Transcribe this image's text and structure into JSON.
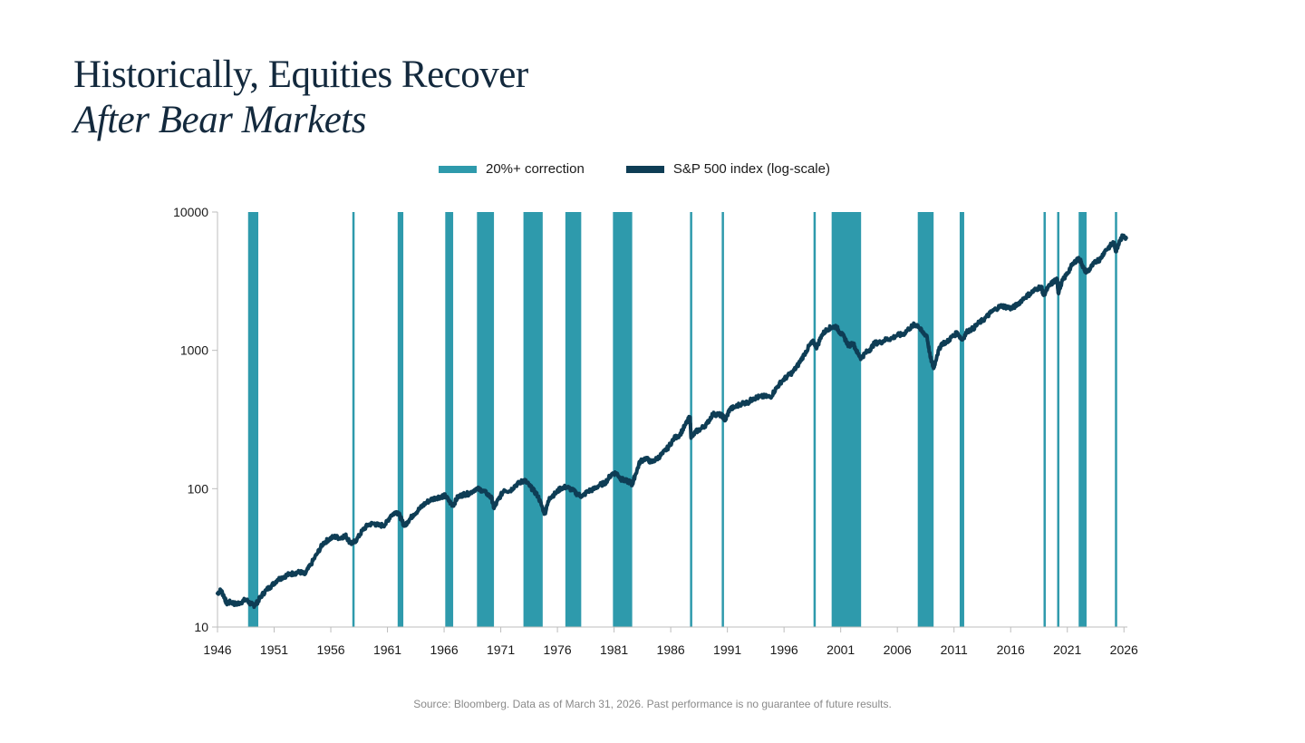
{
  "header": {
    "title_line1": "Historically, Equities Recover",
    "title_line2": "After Bear Markets"
  },
  "legend": [
    {
      "label": "20%+ correction",
      "color": "#2e9aac"
    },
    {
      "label": "S&P 500 index (log-scale)",
      "color": "#0e3d55"
    }
  ],
  "footer": {
    "source": "Source: Bloomberg. Data as of March 31, 2026. Past performance is no guarantee of future results."
  },
  "chart_data": {
    "type": "line",
    "title": "Historically, Equities Recover After Bear Markets",
    "xlabel": "",
    "ylabel": "",
    "yscale": "log",
    "xlim": [
      1946,
      2026.3
    ],
    "ylim": [
      10,
      10000
    ],
    "xticks": [
      "1946",
      "1951",
      "1956",
      "1961",
      "1966",
      "1971",
      "1976",
      "1981",
      "1986",
      "1991",
      "1996",
      "2001",
      "2006",
      "2011",
      "2016",
      "2021",
      "2026"
    ],
    "yticks": [
      "10",
      "100",
      "1000",
      "10000"
    ],
    "grid": false,
    "legend_position": "top-center",
    "series": [
      {
        "name": "S&P 500 index (log-scale)",
        "color": "#0e3d55",
        "x": [
          1946.0,
          1946.3,
          1946.6,
          1946.8,
          1947.2,
          1947.6,
          1948.0,
          1948.5,
          1948.9,
          1949.2,
          1949.5,
          1949.8,
          1950.3,
          1950.8,
          1951.3,
          1951.8,
          1952.3,
          1952.8,
          1953.3,
          1953.7,
          1954.2,
          1954.8,
          1955.3,
          1955.8,
          1956.3,
          1956.8,
          1957.3,
          1957.6,
          1957.9,
          1958.3,
          1958.8,
          1959.3,
          1959.8,
          1960.3,
          1960.8,
          1961.3,
          1961.8,
          1962.0,
          1962.3,
          1962.5,
          1962.8,
          1963.3,
          1963.8,
          1964.3,
          1964.8,
          1965.3,
          1965.8,
          1966.1,
          1966.5,
          1966.8,
          1967.2,
          1967.7,
          1968.2,
          1968.8,
          1969.3,
          1969.8,
          1970.2,
          1970.4,
          1970.8,
          1971.3,
          1971.8,
          1972.3,
          1972.8,
          1973.1,
          1973.5,
          1973.9,
          1974.3,
          1974.7,
          1974.9,
          1975.3,
          1975.8,
          1976.3,
          1976.8,
          1977.3,
          1977.8,
          1978.2,
          1978.7,
          1979.2,
          1979.7,
          1980.2,
          1980.8,
          1981.2,
          1981.6,
          1982.0,
          1982.4,
          1982.6,
          1982.9,
          1983.3,
          1983.8,
          1984.3,
          1984.8,
          1985.3,
          1985.8,
          1986.3,
          1986.8,
          1987.3,
          1987.7,
          1987.8,
          1988.2,
          1988.7,
          1989.2,
          1989.7,
          1990.2,
          1990.6,
          1990.8,
          1991.2,
          1991.7,
          1992.3,
          1992.8,
          1993.3,
          1993.8,
          1994.3,
          1994.8,
          1995.3,
          1995.8,
          1996.3,
          1996.8,
          1997.3,
          1997.8,
          1998.3,
          1998.6,
          1998.9,
          1999.3,
          1999.8,
          2000.2,
          2000.6,
          2000.9,
          2001.3,
          2001.7,
          2002.1,
          2002.5,
          2002.8,
          2003.2,
          2003.6,
          2004.0,
          2004.5,
          2005.0,
          2005.5,
          2006.0,
          2006.5,
          2007.0,
          2007.5,
          2007.8,
          2008.2,
          2008.6,
          2008.9,
          2009.2,
          2009.5,
          2009.9,
          2010.4,
          2010.8,
          2011.3,
          2011.7,
          2012.2,
          2012.7,
          2013.2,
          2013.7,
          2014.2,
          2014.7,
          2015.2,
          2015.7,
          2016.1,
          2016.6,
          2017.2,
          2017.8,
          2018.2,
          2018.7,
          2018.9,
          2019.3,
          2019.8,
          2020.1,
          2020.2,
          2020.5,
          2020.9,
          2021.4,
          2021.9,
          2022.2,
          2022.5,
          2022.8,
          2023.2,
          2023.6,
          2023.9,
          2024.3,
          2024.8,
          2025.1,
          2025.3,
          2025.6,
          2025.9,
          2026.2
        ],
        "y": [
          17.5,
          18.5,
          16.5,
          14.8,
          15.2,
          14.6,
          15.0,
          15.8,
          14.8,
          14.3,
          15.0,
          16.5,
          18.5,
          20.0,
          22.0,
          23.0,
          24.0,
          24.5,
          25.0,
          24.0,
          28.0,
          34.0,
          40.0,
          43.0,
          45.0,
          44.0,
          46.0,
          42.0,
          40.0,
          43.0,
          50.0,
          55.0,
          56.0,
          54.0,
          55.0,
          64.0,
          68.0,
          66.0,
          58.0,
          54.0,
          58.0,
          65.0,
          71.0,
          78.0,
          83.0,
          86.0,
          88.0,
          89.0,
          80.0,
          76.0,
          87.0,
          91.0,
          92.0,
          100.0,
          98.0,
          92.0,
          85.0,
          72.0,
          84.0,
          98.0,
          96.0,
          106.0,
          112.0,
          115.0,
          106.0,
          97.0,
          88.0,
          72.0,
          66.0,
          86.0,
          92.0,
          101.0,
          103.0,
          98.0,
          91.0,
          88.0,
          96.0,
          99.0,
          106.0,
          110.0,
          128.0,
          130.0,
          118.0,
          114.0,
          112.0,
          107.0,
          128.0,
          158.0,
          166.0,
          155.0,
          165.0,
          180.0,
          200.0,
          232.0,
          245.0,
          290.0,
          330.0,
          232.0,
          258.0,
          272.0,
          295.0,
          345.0,
          345.0,
          335.0,
          310.0,
          375.0,
          390.0,
          415.0,
          420.0,
          450.0,
          460.0,
          465.0,
          460.0,
          530.0,
          600.0,
          650.0,
          700.0,
          800.0,
          940.0,
          1100.0,
          1150.0,
          1050.0,
          1280.0,
          1420.0,
          1470.0,
          1490.0,
          1360.0,
          1250.0,
          1080.0,
          1130.0,
          950.0,
          880.0,
          960.0,
          1020.0,
          1130.0,
          1140.0,
          1200.0,
          1220.0,
          1290.0,
          1300.0,
          1430.0,
          1530.0,
          1520.0,
          1350.0,
          1280.0,
          900.0,
          740.0,
          920.0,
          1120.0,
          1150.0,
          1250.0,
          1340.0,
          1190.0,
          1380.0,
          1440.0,
          1580.0,
          1690.0,
          1860.0,
          2000.0,
          2100.0,
          2050.0,
          2010.0,
          2150.0,
          2400.0,
          2600.0,
          2750.0,
          2900.0,
          2500.0,
          2850.0,
          3150.0,
          3230.0,
          2600.0,
          3100.0,
          3500.0,
          4100.0,
          4600.0,
          4400.0,
          3800.0,
          3700.0,
          4100.0,
          4450.0,
          4550.0,
          5200.0,
          5700.0,
          6000.0,
          5200.0,
          6200.0,
          6700.0,
          6500.0
        ]
      }
    ],
    "corrections": [
      {
        "start": 1948.7,
        "end": 1949.6
      },
      {
        "start": 1957.9,
        "end": 1958.1
      },
      {
        "start": 1961.9,
        "end": 1962.4
      },
      {
        "start": 1966.1,
        "end": 1966.8
      },
      {
        "start": 1968.9,
        "end": 1970.4
      },
      {
        "start": 1973.0,
        "end": 1974.7
      },
      {
        "start": 1976.7,
        "end": 1978.1
      },
      {
        "start": 1980.9,
        "end": 1982.6
      },
      {
        "start": 1987.7,
        "end": 1987.9
      },
      {
        "start": 1990.5,
        "end": 1990.7
      },
      {
        "start": 1998.6,
        "end": 1998.7
      },
      {
        "start": 2000.2,
        "end": 2002.8
      },
      {
        "start": 2007.8,
        "end": 2009.2
      },
      {
        "start": 2011.5,
        "end": 2011.9
      },
      {
        "start": 2018.9,
        "end": 2019.1
      },
      {
        "start": 2020.1,
        "end": 2020.25
      },
      {
        "start": 2022.0,
        "end": 2022.7
      },
      {
        "start": 2025.2,
        "end": 2025.35
      }
    ]
  }
}
